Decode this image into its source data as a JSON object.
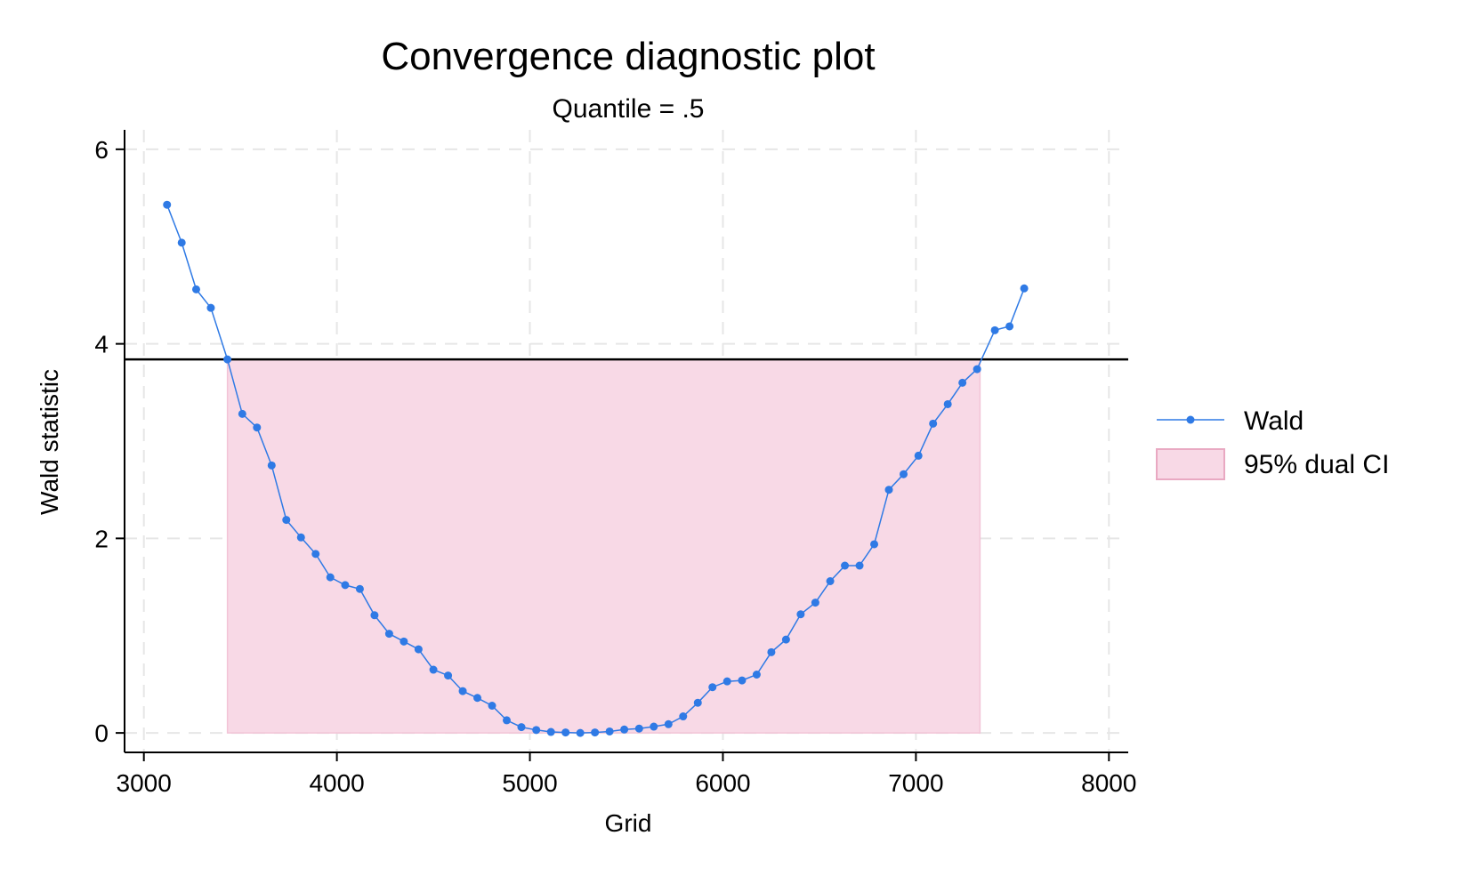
{
  "chart_data": {
    "type": "line",
    "title": "Convergence diagnostic plot",
    "subtitle": "Quantile = .5",
    "xlabel": "Grid",
    "ylabel": "Wald statistic",
    "xlim": [
      2900,
      8100
    ],
    "ylim": [
      -0.2,
      6.2
    ],
    "xticks": [
      3000,
      4000,
      5000,
      6000,
      7000,
      8000
    ],
    "yticks": [
      0,
      2,
      4,
      6
    ],
    "xtick_labels": [
      "3000",
      "4000",
      "5000",
      "6000",
      "7000",
      "8000"
    ],
    "ytick_labels": [
      "0",
      "2",
      "4",
      "6"
    ],
    "grid": true,
    "legend_position": "right",
    "critical_value": 3.84,
    "ci_band": {
      "name": "95% dual CI",
      "x_start": 3433,
      "x_end": 7332,
      "y_top": 3.84,
      "color": "#f8d9e6"
    },
    "series": [
      {
        "name": "Wald",
        "color": "#2f7ae5",
        "x": [
          3120,
          3196,
          3271,
          3347,
          3433,
          3510,
          3586,
          3662,
          3738,
          3814,
          3890,
          3966,
          4043,
          4119,
          4195,
          4271,
          4347,
          4423,
          4500,
          4576,
          4652,
          4728,
          4804,
          4880,
          4956,
          5033,
          5109,
          5185,
          5261,
          5337,
          5413,
          5489,
          5566,
          5642,
          5718,
          5794,
          5870,
          5946,
          6022,
          6099,
          6175,
          6251,
          6327,
          6403,
          6479,
          6556,
          6632,
          6708,
          6784,
          6860,
          6936,
          7013,
          7089,
          7165,
          7241,
          7317,
          7409,
          7485,
          7561
        ],
        "y": [
          5.43,
          5.04,
          4.56,
          4.37,
          3.84,
          3.28,
          3.14,
          2.75,
          2.19,
          2.01,
          1.84,
          1.6,
          1.52,
          1.48,
          1.21,
          1.02,
          0.94,
          0.86,
          0.65,
          0.59,
          0.43,
          0.36,
          0.28,
          0.13,
          0.06,
          0.03,
          0.01,
          0.005,
          0.0,
          0.005,
          0.015,
          0.035,
          0.045,
          0.065,
          0.09,
          0.17,
          0.31,
          0.47,
          0.53,
          0.54,
          0.6,
          0.83,
          0.96,
          1.22,
          1.34,
          1.56,
          1.72,
          1.72,
          1.94,
          2.5,
          2.66,
          2.85,
          3.18,
          3.38,
          3.6,
          3.74,
          4.14,
          4.18,
          4.57
        ]
      }
    ],
    "legend": [
      {
        "label": "Wald",
        "kind": "line-marker"
      },
      {
        "label": "95% dual CI",
        "kind": "area"
      }
    ]
  }
}
